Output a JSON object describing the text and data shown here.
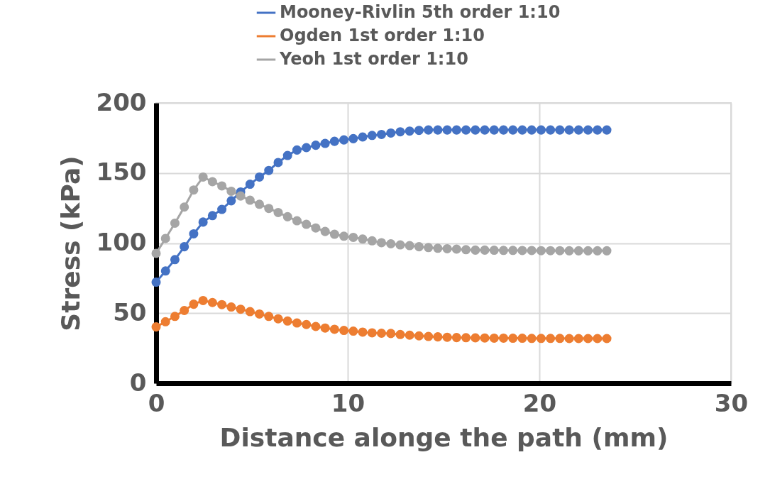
{
  "chart_data": {
    "type": "line",
    "xlabel": "Distance alonge the path (mm)",
    "ylabel": "Stress (kPa)",
    "x": [
      0,
      0.49,
      0.98,
      1.47,
      1.96,
      2.45,
      2.94,
      3.43,
      3.92,
      4.41,
      4.9,
      5.39,
      5.88,
      6.37,
      6.86,
      7.35,
      7.84,
      8.33,
      8.82,
      9.31,
      9.8,
      10.29,
      10.78,
      11.27,
      11.76,
      12.25,
      12.74,
      13.23,
      13.72,
      14.21,
      14.7,
      15.19,
      15.68,
      16.17,
      16.66,
      17.15,
      17.64,
      18.13,
      18.62,
      19.11,
      19.6,
      20.09,
      20.58,
      21.07,
      21.56,
      22.05,
      22.54,
      23.03,
      23.52
    ],
    "series": [
      {
        "name": "Mooney-Rivlin 5th order 1:10",
        "color": "#4472c4",
        "values": [
          72.1,
          80.1,
          88.2,
          97.4,
          106.6,
          115.0,
          119.6,
          124.0,
          130.2,
          136.5,
          142.0,
          147.1,
          151.8,
          157.5,
          162.5,
          166.4,
          168.1,
          169.8,
          171.1,
          172.6,
          173.6,
          174.5,
          175.7,
          176.8,
          177.5,
          178.5,
          179.4,
          179.9,
          180.4,
          180.7,
          180.7,
          180.7,
          180.7,
          180.7,
          180.7,
          180.7,
          180.7,
          180.7,
          180.7,
          180.7,
          180.7,
          180.7,
          180.7,
          180.7,
          180.7,
          180.7,
          180.7,
          180.7,
          180.7
        ]
      },
      {
        "name": "Ogden 1st order 1:10",
        "color": "#ed7d31",
        "values": [
          40.2,
          43.9,
          47.7,
          51.9,
          56.4,
          59.0,
          57.6,
          56.1,
          54.4,
          52.8,
          51.1,
          49.4,
          47.7,
          46.0,
          44.4,
          43.0,
          41.9,
          40.5,
          39.4,
          38.5,
          37.7,
          37.2,
          36.5,
          36.0,
          35.7,
          35.5,
          34.8,
          34.3,
          33.8,
          33.4,
          33.1,
          32.8,
          32.6,
          32.5,
          32.4,
          32.3,
          32.2,
          32.2,
          32.1,
          32.1,
          32.0,
          32.0,
          32.0,
          32.0,
          31.9,
          31.9,
          31.9,
          31.9,
          31.9
        ]
      },
      {
        "name": "Yeoh 1st order 1:10",
        "color": "#a5a5a5",
        "values": [
          92.7,
          103.3,
          114.2,
          125.7,
          137.9,
          147.1,
          143.8,
          140.8,
          137.0,
          133.6,
          130.6,
          127.7,
          124.7,
          121.8,
          118.8,
          115.9,
          113.4,
          110.8,
          108.3,
          106.3,
          104.9,
          104.1,
          102.9,
          101.6,
          100.3,
          99.5,
          98.7,
          98.2,
          97.4,
          96.8,
          96.3,
          96.0,
          95.7,
          95.3,
          95.0,
          95.0,
          94.9,
          94.8,
          94.8,
          94.7,
          94.7,
          94.6,
          94.6,
          94.6,
          94.5,
          94.5,
          94.5,
          94.5,
          94.5
        ]
      }
    ],
    "xlim": [
      0,
      30
    ],
    "xticks": [
      0,
      10,
      20,
      30
    ],
    "ylim": [
      0,
      200
    ],
    "yticks": [
      0,
      50,
      100,
      150,
      200
    ],
    "grid": true,
    "legend": "top",
    "marker": "circle",
    "line_style": "solid"
  }
}
